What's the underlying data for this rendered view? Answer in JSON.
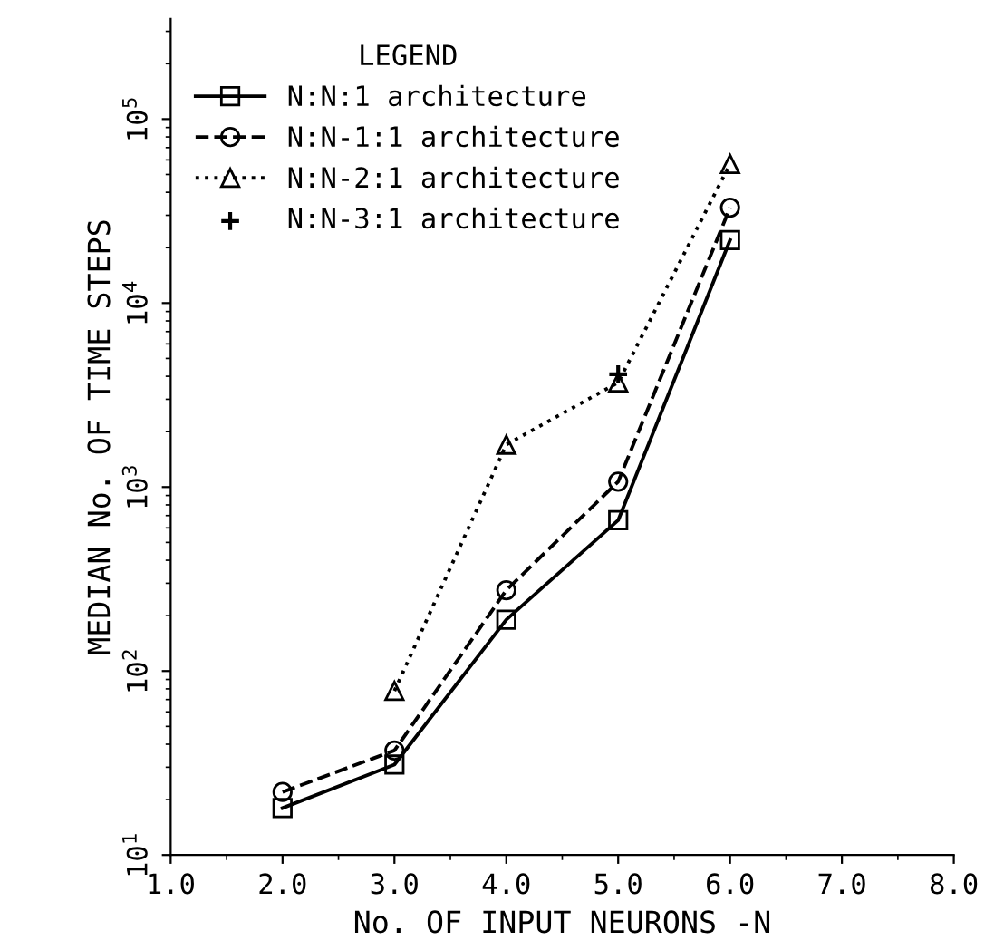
{
  "chart_data": {
    "type": "line",
    "xlabel": "No. OF INPUT NEURONS -N",
    "ylabel": "MEDIAN No. OF TIME STEPS",
    "legend_title": "LEGEND",
    "x": [
      2,
      3,
      4,
      5,
      6
    ],
    "series": [
      {
        "name": "N:N:1 architecture",
        "color": "#000000",
        "marker": "square",
        "line_style": "solid",
        "values": [
          18,
          31,
          190,
          660,
          22000
        ]
      },
      {
        "name": "N:N-1:1 architecture",
        "color": "#000000",
        "marker": "circle",
        "line_style": "dashed",
        "values": [
          22,
          37,
          275,
          1070,
          33000
        ]
      },
      {
        "name": "N:N-2:1 architecture",
        "color": "#000000",
        "marker": "triangle",
        "line_style": "dotted",
        "values": [
          null,
          78,
          1700,
          3700,
          57000
        ]
      },
      {
        "name": "N:N-3:1 architecture",
        "color": "#000000",
        "type": "scatter",
        "marker": "cross",
        "values": [
          null,
          null,
          null,
          4100,
          null
        ]
      }
    ],
    "log": "y",
    "xlim": [
      1,
      8
    ],
    "ylim": [
      10,
      350000
    ],
    "xticks": [
      {
        "value": 1,
        "label": "1.0"
      },
      {
        "value": 2,
        "label": "2.0"
      },
      {
        "value": 3,
        "label": "3.0"
      },
      {
        "value": 4,
        "label": "4.0"
      },
      {
        "value": 5,
        "label": "5.0"
      },
      {
        "value": 6,
        "label": "6.0"
      },
      {
        "value": 7,
        "label": "7.0"
      },
      {
        "value": 8,
        "label": "8.0"
      }
    ],
    "yticks": [
      {
        "value": 10,
        "label": "10$^{1}$"
      },
      {
        "value": 100,
        "label": "10$^{2}$"
      },
      {
        "value": 1000,
        "label": "10$^{3}$"
      },
      {
        "value": 10000,
        "label": "10$^{4}$"
      },
      {
        "value": 100000,
        "label": "10$^{5}$"
      }
    ],
    "grid": false,
    "legend": "top left"
  }
}
